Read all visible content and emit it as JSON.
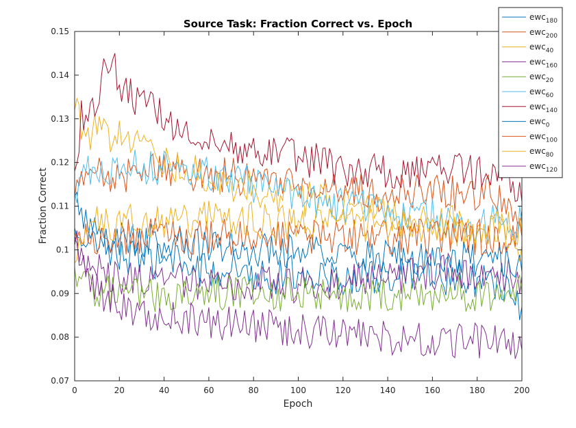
{
  "chart_data": {
    "type": "line",
    "title": "Source Task: Fraction Correct vs. Epoch",
    "xlabel": "Epoch",
    "ylabel": "Fraction Correct",
    "xlim": [
      0,
      200
    ],
    "ylim": [
      0.07,
      0.15
    ],
    "xticks": [
      0,
      20,
      40,
      60,
      80,
      100,
      120,
      140,
      160,
      180,
      200
    ],
    "xtick_labels": [
      "0",
      "20",
      "40",
      "60",
      "80",
      "100",
      "120",
      "140",
      "160",
      "180",
      "200"
    ],
    "yticks": [
      0.07,
      0.08,
      0.09,
      0.1,
      0.11,
      0.12,
      0.13,
      0.14,
      0.15
    ],
    "ytick_labels": [
      "0.07",
      "0.08",
      "0.09",
      "0.1",
      "0.11",
      "0.12",
      "0.13",
      "0.14",
      "0.15"
    ],
    "grid": false,
    "legend_position": "top-right",
    "series": [
      {
        "name_base": "ewc",
        "name_sub": "180",
        "color": "#0072BD",
        "values": [
          [
            0,
            0.112
          ],
          [
            5,
            0.106
          ],
          [
            10,
            0.103
          ],
          [
            20,
            0.099
          ],
          [
            30,
            0.097
          ],
          [
            40,
            0.098
          ],
          [
            50,
            0.096
          ],
          [
            60,
            0.095
          ],
          [
            70,
            0.096
          ],
          [
            80,
            0.095
          ],
          [
            90,
            0.094
          ],
          [
            100,
            0.095
          ],
          [
            110,
            0.094
          ],
          [
            120,
            0.093
          ],
          [
            130,
            0.094
          ],
          [
            140,
            0.094
          ],
          [
            150,
            0.094
          ],
          [
            160,
            0.094
          ],
          [
            170,
            0.093
          ],
          [
            180,
            0.093
          ],
          [
            190,
            0.092
          ],
          [
            200,
            0.087
          ]
        ]
      },
      {
        "name_base": "ewc",
        "name_sub": "200",
        "color": "#D95319",
        "values": [
          [
            0,
            0.112
          ],
          [
            5,
            0.117
          ],
          [
            10,
            0.118
          ],
          [
            20,
            0.117
          ],
          [
            30,
            0.118
          ],
          [
            40,
            0.119
          ],
          [
            50,
            0.118
          ],
          [
            60,
            0.117
          ],
          [
            70,
            0.117
          ],
          [
            80,
            0.116
          ],
          [
            90,
            0.115
          ],
          [
            100,
            0.115
          ],
          [
            110,
            0.114
          ],
          [
            120,
            0.114
          ],
          [
            130,
            0.113
          ],
          [
            140,
            0.113
          ],
          [
            150,
            0.113
          ],
          [
            160,
            0.113
          ],
          [
            170,
            0.113
          ],
          [
            180,
            0.113
          ],
          [
            190,
            0.113
          ],
          [
            200,
            0.109
          ]
        ]
      },
      {
        "name_base": "ewc",
        "name_sub": "40",
        "color": "#EDB120",
        "values": [
          [
            0,
            0.132
          ],
          [
            5,
            0.127
          ],
          [
            10,
            0.127
          ],
          [
            20,
            0.126
          ],
          [
            30,
            0.123
          ],
          [
            40,
            0.121
          ],
          [
            50,
            0.118
          ],
          [
            60,
            0.117
          ],
          [
            70,
            0.115
          ],
          [
            80,
            0.114
          ],
          [
            90,
            0.113
          ],
          [
            100,
            0.112
          ],
          [
            110,
            0.111
          ],
          [
            120,
            0.11
          ],
          [
            130,
            0.109
          ],
          [
            140,
            0.108
          ],
          [
            150,
            0.107
          ],
          [
            160,
            0.106
          ],
          [
            170,
            0.105
          ],
          [
            180,
            0.104
          ],
          [
            190,
            0.104
          ],
          [
            200,
            0.101
          ]
        ]
      },
      {
        "name_base": "ewc",
        "name_sub": "160",
        "color": "#7E2F8E",
        "values": [
          [
            0,
            0.101
          ],
          [
            5,
            0.097
          ],
          [
            10,
            0.095
          ],
          [
            20,
            0.094
          ],
          [
            30,
            0.093
          ],
          [
            40,
            0.093
          ],
          [
            50,
            0.093
          ],
          [
            60,
            0.092
          ],
          [
            70,
            0.092
          ],
          [
            80,
            0.092
          ],
          [
            90,
            0.092
          ],
          [
            100,
            0.092
          ],
          [
            110,
            0.092
          ],
          [
            120,
            0.093
          ],
          [
            130,
            0.093
          ],
          [
            140,
            0.094
          ],
          [
            150,
            0.094
          ],
          [
            160,
            0.095
          ],
          [
            170,
            0.095
          ],
          [
            180,
            0.095
          ],
          [
            190,
            0.095
          ],
          [
            200,
            0.094
          ]
        ]
      },
      {
        "name_base": "ewc",
        "name_sub": "20",
        "color": "#77AC30",
        "values": [
          [
            0,
            0.096
          ],
          [
            5,
            0.092
          ],
          [
            10,
            0.091
          ],
          [
            20,
            0.09
          ],
          [
            30,
            0.09
          ],
          [
            40,
            0.09
          ],
          [
            50,
            0.09
          ],
          [
            60,
            0.09
          ],
          [
            70,
            0.09
          ],
          [
            80,
            0.09
          ],
          [
            90,
            0.09
          ],
          [
            100,
            0.09
          ],
          [
            110,
            0.09
          ],
          [
            120,
            0.09
          ],
          [
            130,
            0.09
          ],
          [
            140,
            0.09
          ],
          [
            150,
            0.09
          ],
          [
            160,
            0.09
          ],
          [
            170,
            0.09
          ],
          [
            180,
            0.09
          ],
          [
            190,
            0.09
          ],
          [
            200,
            0.09
          ]
        ]
      },
      {
        "name_base": "ewc",
        "name_sub": "60",
        "color": "#4DBEEE",
        "values": [
          [
            0,
            0.113
          ],
          [
            5,
            0.117
          ],
          [
            10,
            0.119
          ],
          [
            20,
            0.119
          ],
          [
            30,
            0.119
          ],
          [
            40,
            0.119
          ],
          [
            50,
            0.118
          ],
          [
            60,
            0.117
          ],
          [
            70,
            0.116
          ],
          [
            80,
            0.115
          ],
          [
            90,
            0.113
          ],
          [
            100,
            0.112
          ],
          [
            110,
            0.111
          ],
          [
            120,
            0.11
          ],
          [
            130,
            0.11
          ],
          [
            140,
            0.109
          ],
          [
            150,
            0.108
          ],
          [
            160,
            0.108
          ],
          [
            170,
            0.107
          ],
          [
            180,
            0.106
          ],
          [
            190,
            0.106
          ],
          [
            200,
            0.106
          ]
        ]
      },
      {
        "name_base": "ewc",
        "name_sub": "140",
        "color": "#A2142F",
        "values": [
          [
            0,
            0.118
          ],
          [
            3,
            0.131
          ],
          [
            10,
            0.135
          ],
          [
            16,
            0.145
          ],
          [
            20,
            0.137
          ],
          [
            30,
            0.134
          ],
          [
            40,
            0.13
          ],
          [
            50,
            0.128
          ],
          [
            60,
            0.126
          ],
          [
            70,
            0.124
          ],
          [
            80,
            0.123
          ],
          [
            90,
            0.122
          ],
          [
            100,
            0.121
          ],
          [
            110,
            0.12
          ],
          [
            120,
            0.118
          ],
          [
            130,
            0.118
          ],
          [
            140,
            0.118
          ],
          [
            150,
            0.118
          ],
          [
            160,
            0.118
          ],
          [
            170,
            0.118
          ],
          [
            180,
            0.118
          ],
          [
            190,
            0.118
          ],
          [
            200,
            0.111
          ]
        ]
      },
      {
        "name_base": "ewc",
        "name_sub": "0",
        "color": "#0072BD",
        "values": [
          [
            0,
            0.105
          ],
          [
            5,
            0.104
          ],
          [
            10,
            0.103
          ],
          [
            20,
            0.103
          ],
          [
            30,
            0.102
          ],
          [
            40,
            0.102
          ],
          [
            50,
            0.101
          ],
          [
            60,
            0.101
          ],
          [
            70,
            0.101
          ],
          [
            80,
            0.1
          ],
          [
            90,
            0.1
          ],
          [
            100,
            0.1
          ],
          [
            110,
            0.099
          ],
          [
            120,
            0.099
          ],
          [
            130,
            0.099
          ],
          [
            140,
            0.098
          ],
          [
            150,
            0.098
          ],
          [
            160,
            0.098
          ],
          [
            170,
            0.098
          ],
          [
            180,
            0.098
          ],
          [
            190,
            0.098
          ],
          [
            200,
            0.095
          ]
        ]
      },
      {
        "name_base": "ewc",
        "name_sub": "100",
        "color": "#D95319",
        "values": [
          [
            0,
            0.104
          ],
          [
            5,
            0.103
          ],
          [
            10,
            0.103
          ],
          [
            20,
            0.103
          ],
          [
            30,
            0.103
          ],
          [
            40,
            0.103
          ],
          [
            50,
            0.103
          ],
          [
            60,
            0.103
          ],
          [
            70,
            0.103
          ],
          [
            80,
            0.103
          ],
          [
            90,
            0.103
          ],
          [
            100,
            0.103
          ],
          [
            110,
            0.103
          ],
          [
            120,
            0.103
          ],
          [
            130,
            0.103
          ],
          [
            140,
            0.103
          ],
          [
            150,
            0.103
          ],
          [
            160,
            0.103
          ],
          [
            170,
            0.103
          ],
          [
            180,
            0.103
          ],
          [
            190,
            0.103
          ],
          [
            200,
            0.103
          ]
        ]
      },
      {
        "name_base": "ewc",
        "name_sub": "80",
        "color": "#EDB120",
        "values": [
          [
            0,
            0.097
          ],
          [
            5,
            0.104
          ],
          [
            10,
            0.106
          ],
          [
            20,
            0.106
          ],
          [
            30,
            0.107
          ],
          [
            40,
            0.107
          ],
          [
            50,
            0.107
          ],
          [
            60,
            0.107
          ],
          [
            70,
            0.107
          ],
          [
            80,
            0.107
          ],
          [
            90,
            0.106
          ],
          [
            100,
            0.106
          ],
          [
            110,
            0.106
          ],
          [
            120,
            0.106
          ],
          [
            130,
            0.106
          ],
          [
            140,
            0.106
          ],
          [
            150,
            0.106
          ],
          [
            160,
            0.106
          ],
          [
            170,
            0.106
          ],
          [
            180,
            0.105
          ],
          [
            190,
            0.105
          ],
          [
            200,
            0.104
          ]
        ]
      },
      {
        "name_base": "ewc",
        "name_sub": "120",
        "color": "#7E2F8E",
        "values": [
          [
            0,
            0.103
          ],
          [
            5,
            0.096
          ],
          [
            10,
            0.091
          ],
          [
            20,
            0.088
          ],
          [
            30,
            0.086
          ],
          [
            40,
            0.085
          ],
          [
            50,
            0.084
          ],
          [
            60,
            0.083
          ],
          [
            70,
            0.083
          ],
          [
            80,
            0.082
          ],
          [
            90,
            0.082
          ],
          [
            100,
            0.081
          ],
          [
            110,
            0.081
          ],
          [
            120,
            0.08
          ],
          [
            130,
            0.08
          ],
          [
            140,
            0.08
          ],
          [
            150,
            0.08
          ],
          [
            160,
            0.08
          ],
          [
            170,
            0.079
          ],
          [
            180,
            0.079
          ],
          [
            190,
            0.079
          ],
          [
            200,
            0.077
          ]
        ]
      }
    ]
  }
}
